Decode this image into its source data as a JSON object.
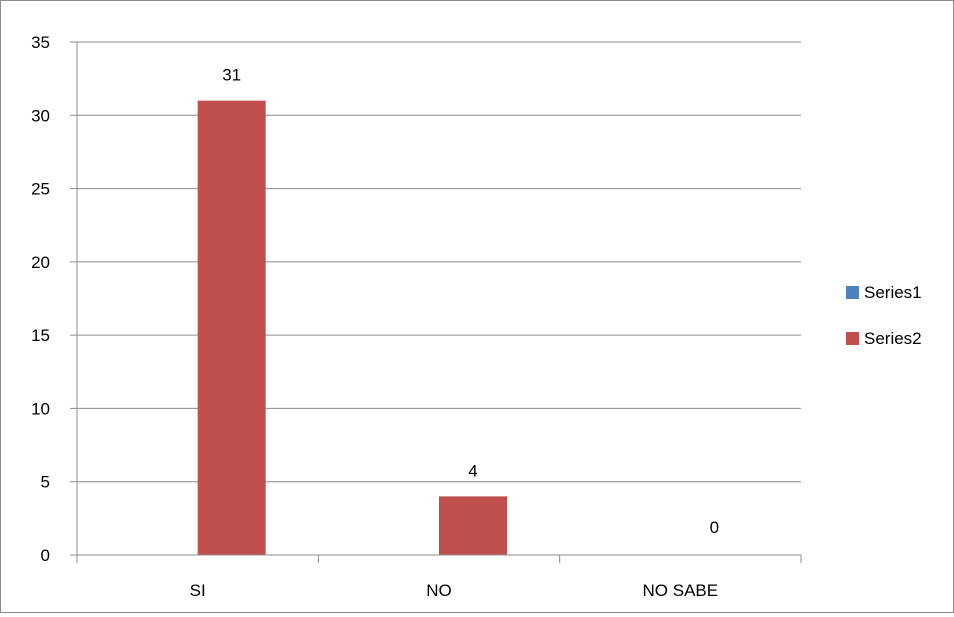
{
  "chart_data": {
    "type": "bar",
    "categories": [
      "SI",
      "NO",
      "NO SABE"
    ],
    "series": [
      {
        "name": "Series1",
        "color": "#4f81bd",
        "values": [
          null,
          null,
          null
        ]
      },
      {
        "name": "Series2",
        "color": "#c0504d",
        "values": [
          31,
          4,
          0
        ]
      }
    ],
    "data_labels": [
      "31",
      "4",
      "0"
    ],
    "ylim": [
      0,
      35
    ],
    "y_ticks": [
      0,
      5,
      10,
      15,
      20,
      25,
      30,
      35
    ],
    "grid": true,
    "legend_position": "right"
  }
}
